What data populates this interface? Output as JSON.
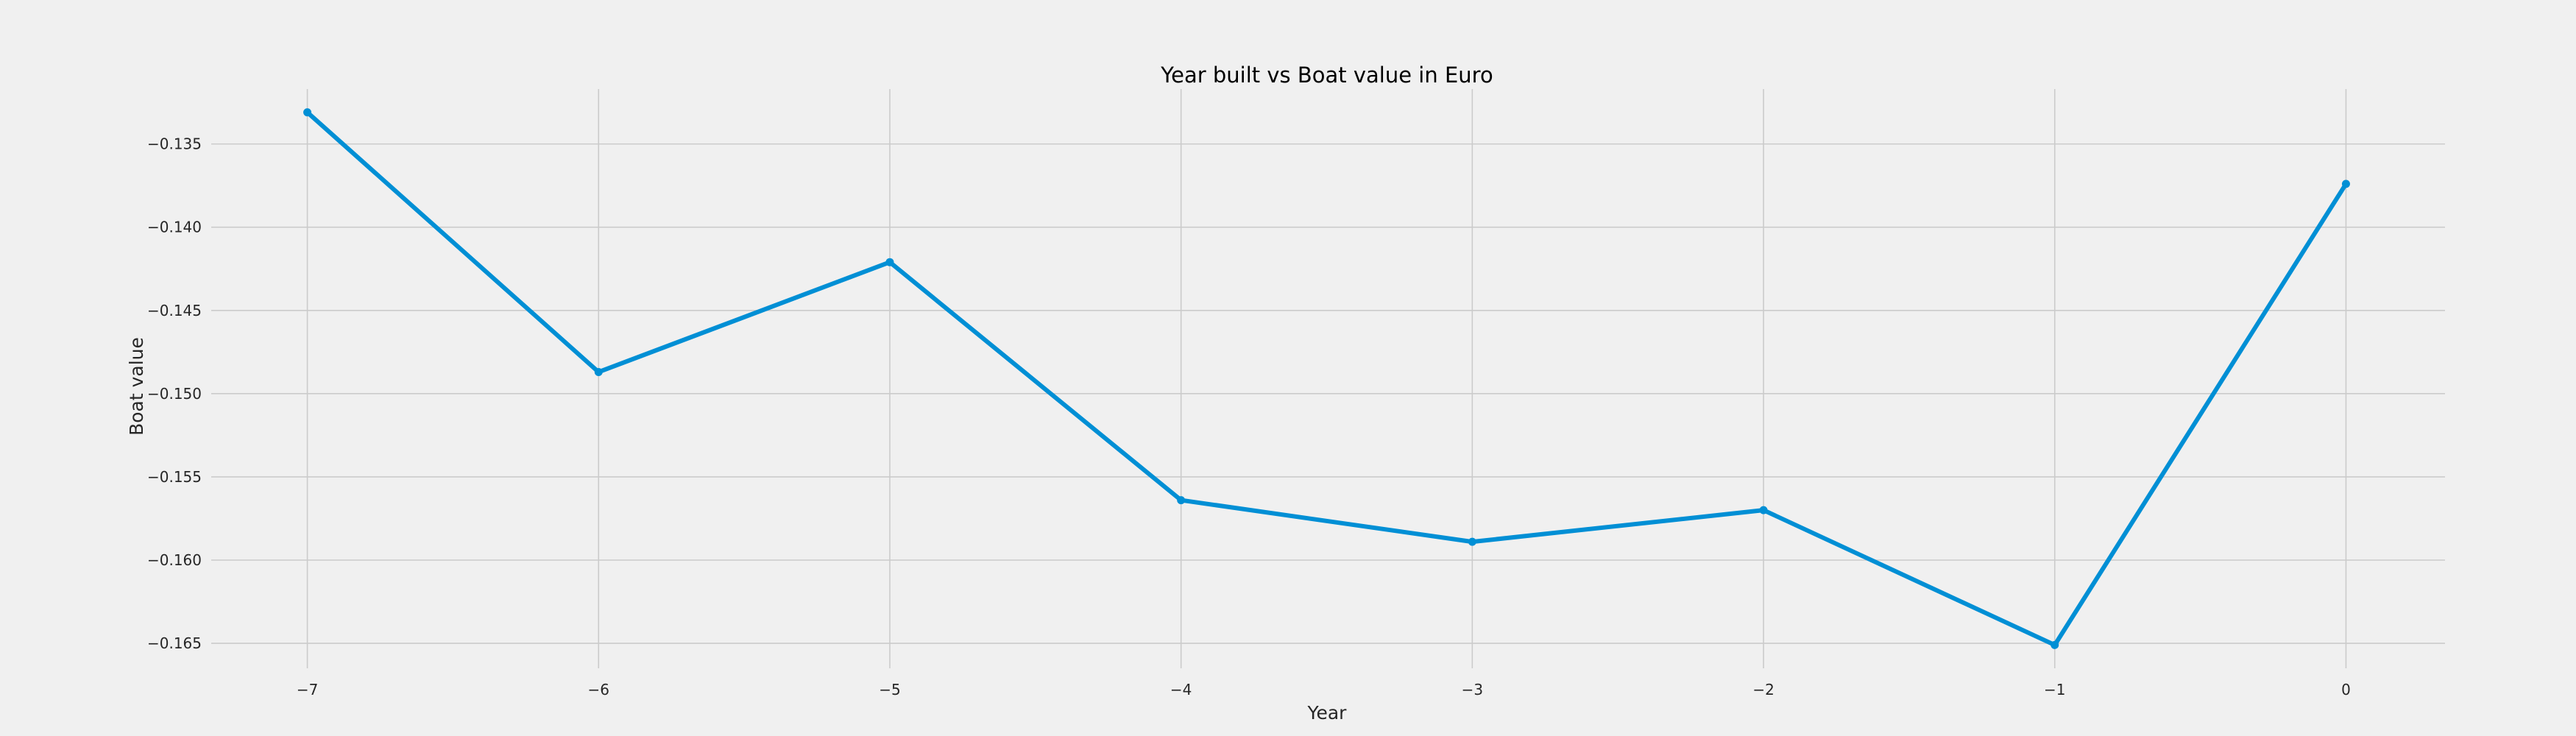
{
  "chart_data": {
    "type": "line",
    "title": "Year built vs Boat value in Euro",
    "xlabel": "Year",
    "ylabel": "Boat value",
    "x": [
      -7,
      -6,
      -5,
      -4,
      -3,
      -2,
      -1,
      0
    ],
    "series": [
      {
        "values": [
          -0.1331,
          -0.1487,
          -0.1421,
          -0.1564,
          -0.1589,
          -0.157,
          -0.1651,
          -0.1374
        ],
        "color": "#008fd5"
      }
    ],
    "xticks": [
      -7,
      -6,
      -5,
      -4,
      -3,
      -2,
      -1,
      0
    ],
    "xtick_labels": [
      "−7",
      "−6",
      "−5",
      "−4",
      "−3",
      "−2",
      "−1",
      "0"
    ],
    "yticks": [
      -0.135,
      -0.14,
      -0.145,
      -0.15,
      -0.155,
      -0.16,
      -0.165
    ],
    "ytick_labels": [
      "−0.135",
      "−0.140",
      "−0.145",
      "−0.150",
      "−0.155",
      "−0.160",
      "−0.165"
    ],
    "xlim": [
      -7.33,
      0.34
    ],
    "ylim": [
      -0.1665,
      -0.1317
    ],
    "grid": true,
    "background": "#f0f0f0",
    "grid_color": "#cbcbcb"
  }
}
